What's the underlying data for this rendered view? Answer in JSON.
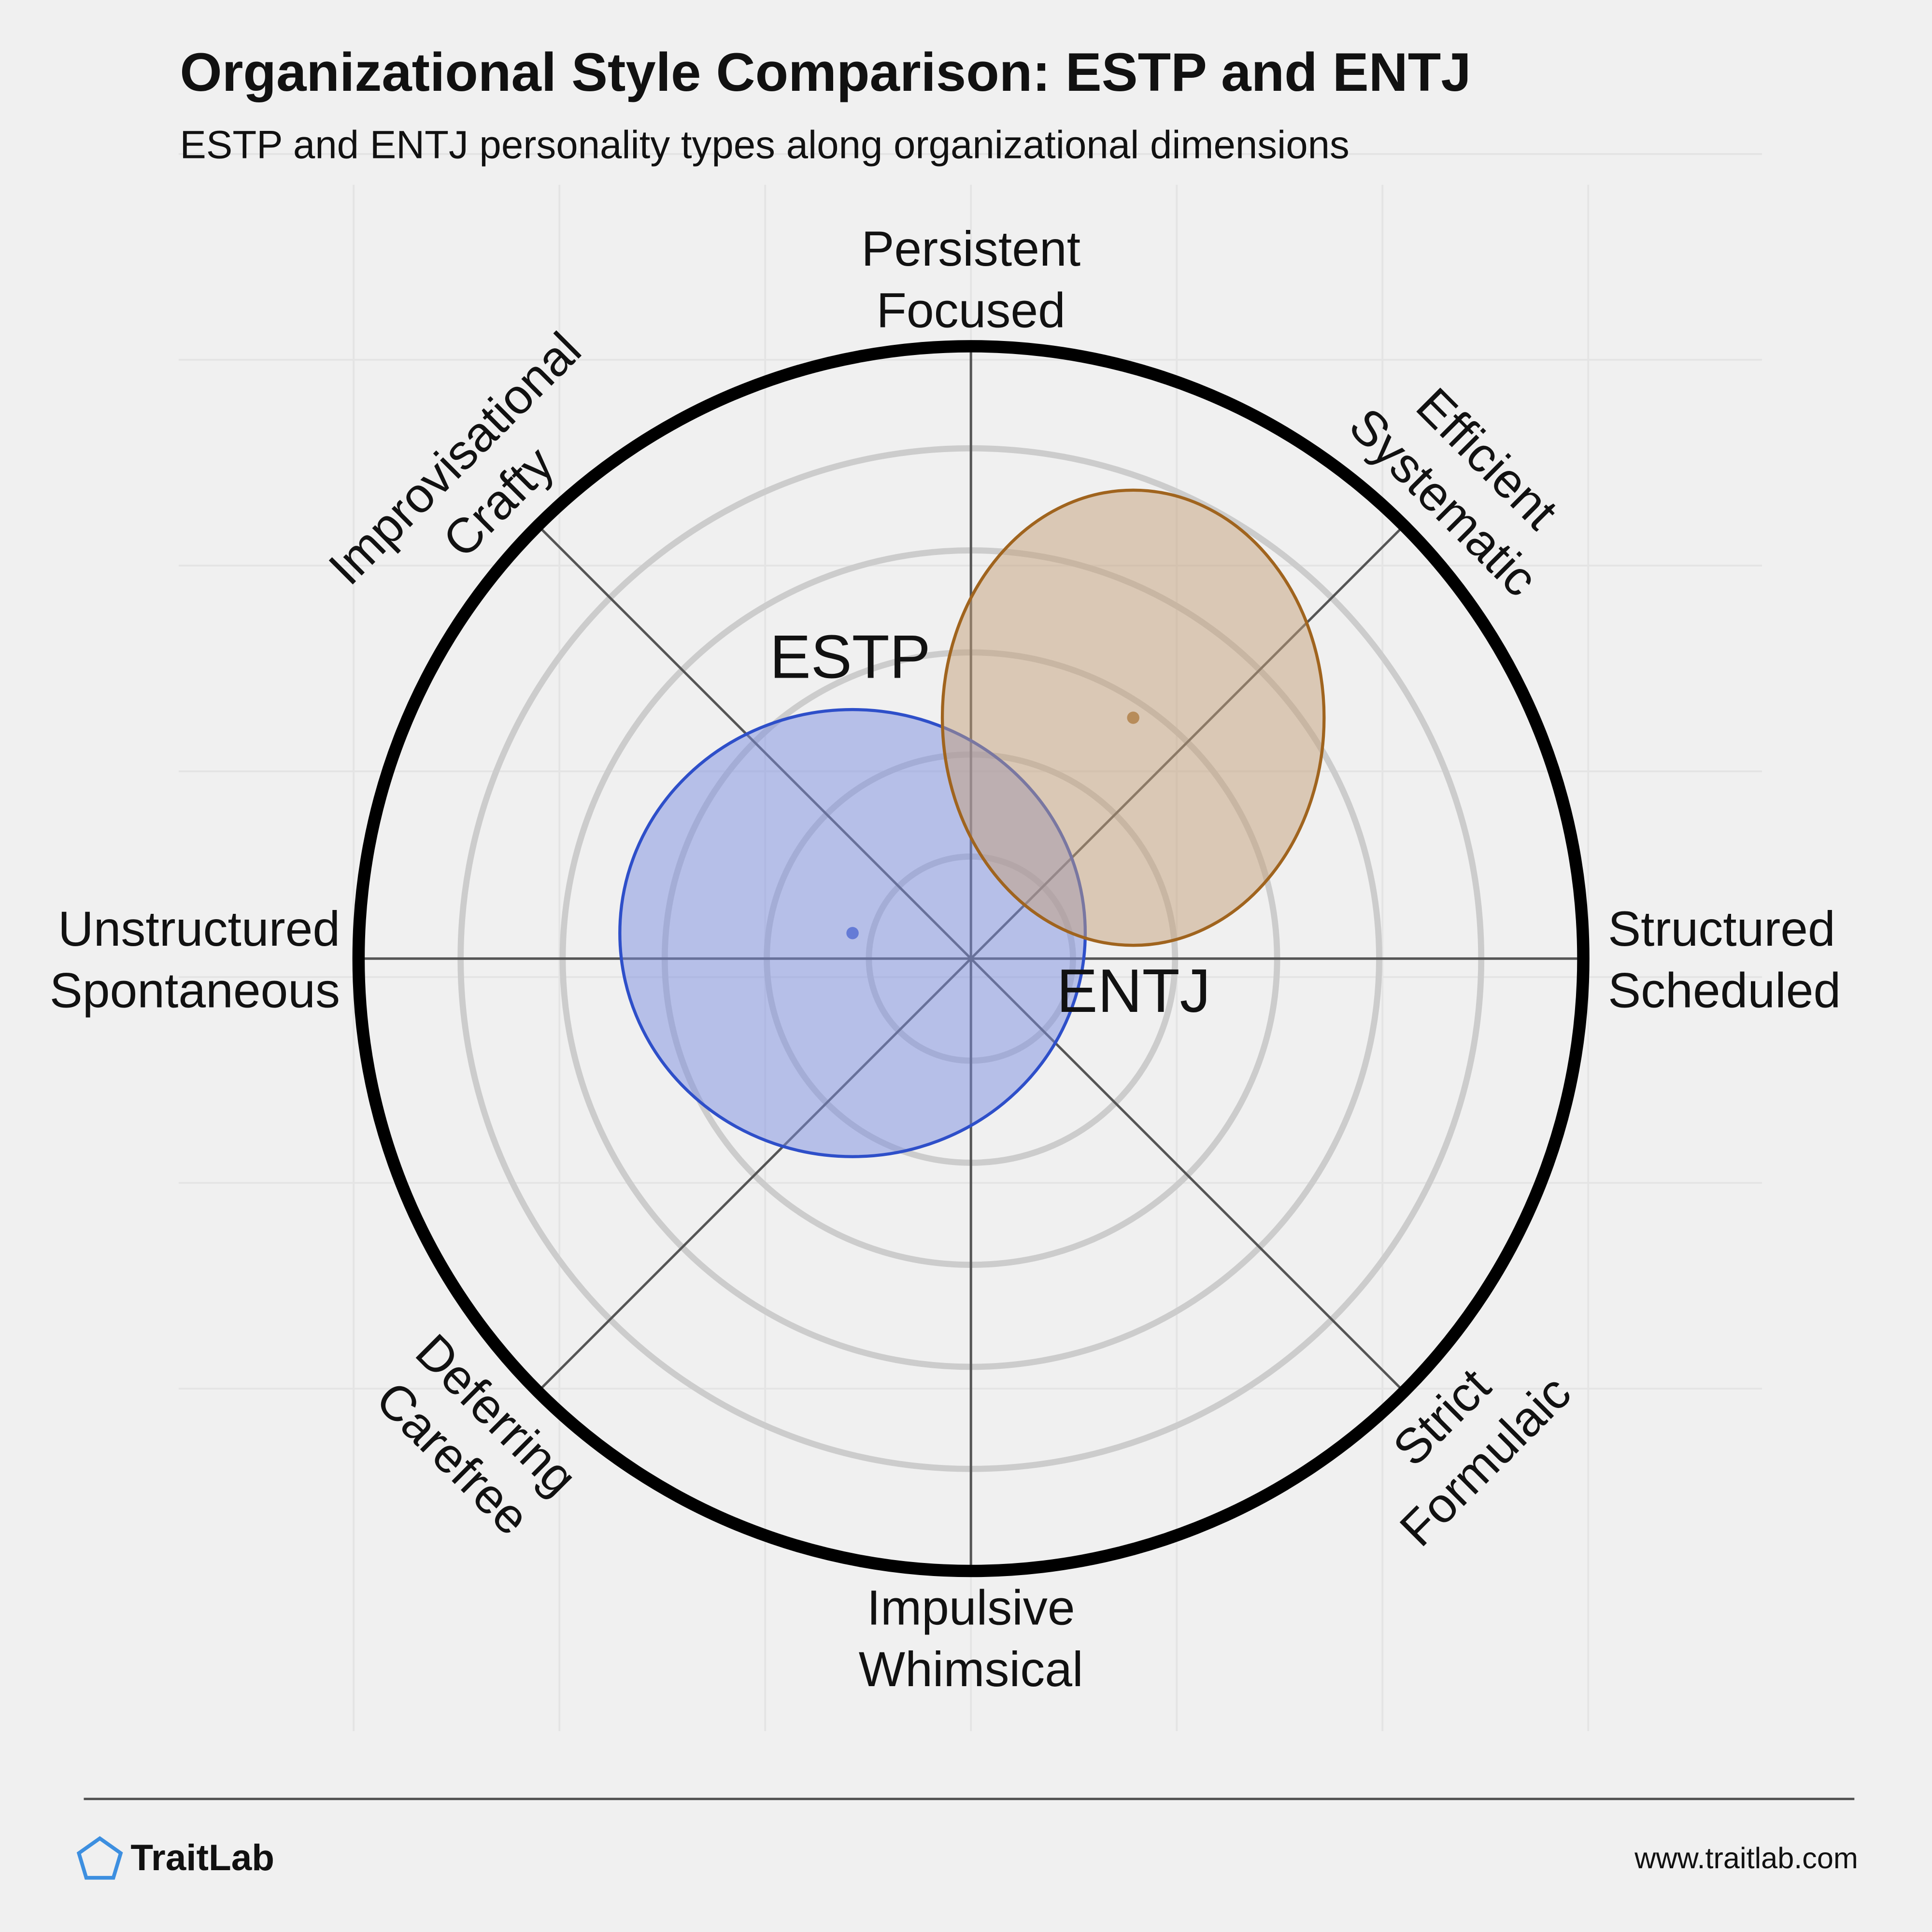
{
  "chart_data": {
    "type": "ellipse-radar",
    "title": "Organizational Style Comparison: ESTP and ENTJ",
    "subtitle": "ESTP and ENTJ personality types along organizational dimensions",
    "axes": [
      [
        "Persistent",
        "Focused"
      ],
      [
        "Efficient",
        "Systematic"
      ],
      [
        "Structured",
        "Scheduled"
      ],
      [
        "Strict",
        "Formulaic"
      ],
      [
        "Impulsive",
        "Whimsical"
      ],
      [
        "Deferring",
        "Carefree"
      ],
      [
        "Unstructured",
        "Spontaneous"
      ],
      [
        "Improvisational",
        "Crafty"
      ]
    ],
    "rlim": [
      0,
      6
    ],
    "rticks": [
      1,
      2,
      3,
      4,
      5
    ],
    "series": [
      {
        "name": "ESTP",
        "color": "#2e4fc9",
        "fill": "#7b8ee0",
        "label_color": "#2b47b5",
        "x": -1.16,
        "y": 0.25,
        "rx": 2.28,
        "ry": 2.19
      },
      {
        "name": "ENTJ",
        "color": "#a0641e",
        "fill": "#c4a07a",
        "label_color": "#8b5a1e",
        "x": 1.59,
        "y": 2.36,
        "rx": 1.87,
        "ry": 2.23
      }
    ],
    "brand": "TraitLab",
    "url": "www.traitlab.com"
  }
}
